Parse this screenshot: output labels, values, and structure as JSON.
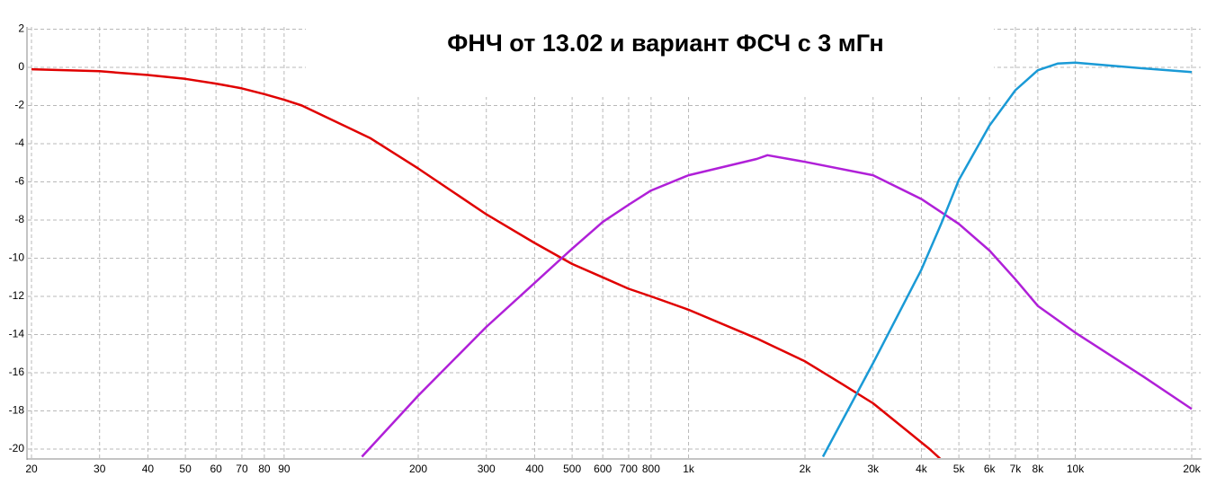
{
  "chart_data": {
    "type": "line",
    "title": "ФНЧ от 13.02 и вариант ФСЧ с 3 мГн",
    "xscale": "log",
    "xlim": [
      20,
      20000
    ],
    "ylim": [
      -20.5,
      2.1
    ],
    "xticks": [
      20,
      30,
      40,
      50,
      60,
      70,
      80,
      90,
      200,
      300,
      400,
      500,
      600,
      {
        "value": 700,
        "label": "700"
      },
      {
        "value": 800,
        "label": "800"
      },
      {
        "value": 1000,
        "label": "1k"
      },
      {
        "value": 2000,
        "label": "2k"
      },
      {
        "value": 3000,
        "label": "3k"
      },
      {
        "value": 4000,
        "label": "4k"
      },
      {
        "value": 5000,
        "label": "5k"
      },
      {
        "value": 6000,
        "label": "6k"
      },
      {
        "value": 7000,
        "label": "7k"
      },
      {
        "value": 8000,
        "label": "8k"
      },
      {
        "value": 10000,
        "label": "10k"
      },
      {
        "value": 20000,
        "label": "20k"
      }
    ],
    "yticks": [
      2,
      0,
      -2,
      -4,
      -6,
      -8,
      -10,
      -12,
      -14,
      -16,
      -18,
      -20
    ],
    "grid": true,
    "series": [
      {
        "color": "#e00000",
        "x": [
          20,
          30,
          40,
          50,
          60,
          70,
          80,
          90,
          100,
          150,
          200,
          300,
          400,
          500,
          600,
          700,
          800,
          1000,
          1500,
          2000,
          2500,
          3000,
          4200,
          4470
        ],
        "values": [
          -0.1,
          -0.2,
          -0.4,
          -0.6,
          -0.85,
          -1.1,
          -1.4,
          -1.7,
          -2.0,
          -3.7,
          -5.3,
          -7.7,
          -9.2,
          -10.3,
          -11.0,
          -11.6,
          -12.0,
          -12.7,
          -14.2,
          -15.4,
          -16.6,
          -17.6,
          -20.0,
          -20.5
        ]
      },
      {
        "color": "#b020d8",
        "x": [
          143,
          200,
          300,
          400,
          500,
          600,
          700,
          800,
          1000,
          1500,
          1600,
          2000,
          3000,
          4000,
          5000,
          6000,
          7000,
          8000,
          10000,
          15000,
          20000
        ],
        "values": [
          -20.4,
          -17.2,
          -13.6,
          -11.3,
          -9.5,
          -8.1,
          -7.2,
          -6.45,
          -5.65,
          -4.8,
          -4.6,
          -4.95,
          -5.65,
          -6.9,
          -8.2,
          -9.6,
          -11.1,
          -12.5,
          -13.9,
          -16.2,
          -17.9
        ]
      },
      {
        "color": "#1a9ad6",
        "x": [
          2226,
          3000,
          4000,
          4500,
          5000,
          6000,
          7000,
          8000,
          9000,
          10000,
          15000,
          20000
        ],
        "values": [
          -20.4,
          -15.5,
          -10.6,
          -8.2,
          -5.9,
          -3.05,
          -1.2,
          -0.15,
          0.2,
          0.25,
          -0.05,
          -0.25
        ]
      }
    ]
  }
}
